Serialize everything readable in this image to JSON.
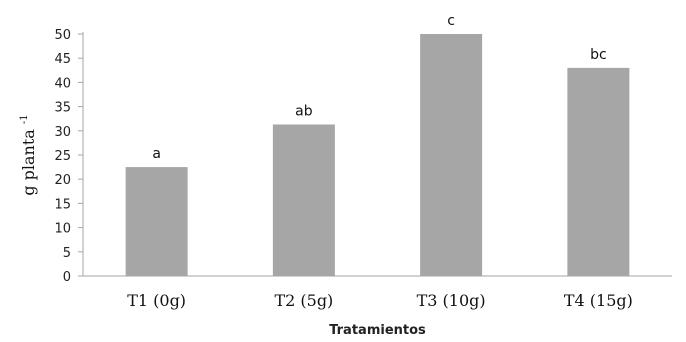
{
  "chart_data": {
    "type": "bar",
    "categories": [
      "T1 (0g)",
      "T2 (5g)",
      "T3 (10g)",
      "T4 (15g)"
    ],
    "values": [
      22.5,
      31.3,
      50.0,
      43.0
    ],
    "data_labels": [
      "a",
      "ab",
      "c",
      "bc"
    ],
    "xlabel": "Tratamientos",
    "ylabel": "g planta",
    "ylabel_superscript": "-1",
    "ylim": [
      0,
      50
    ],
    "yticks": [
      0,
      5,
      10,
      15,
      20,
      25,
      30,
      35,
      40,
      45,
      50
    ],
    "bar_color": "#a6a6a6",
    "axis_color": "#a6a6a6",
    "grid": false,
    "legend": "none"
  }
}
